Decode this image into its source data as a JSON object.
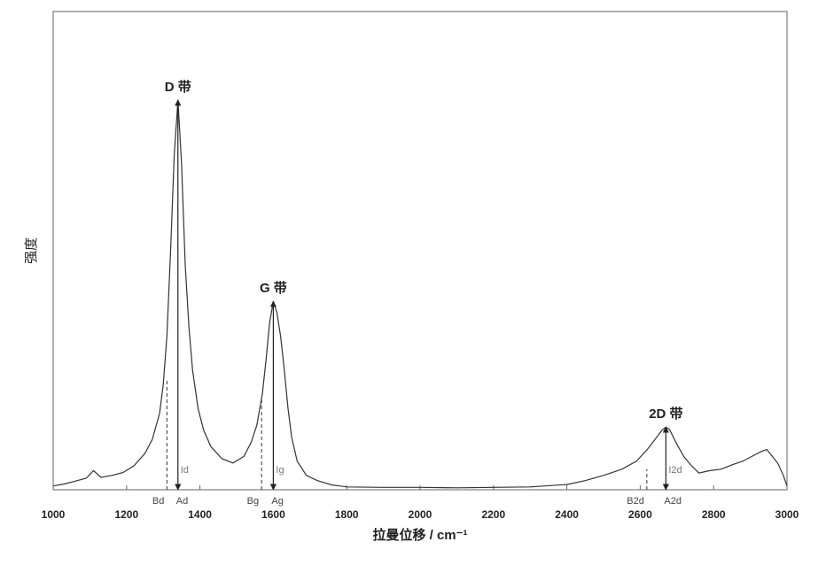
{
  "chart_data": {
    "type": "line",
    "x_label": "拉曼位移 / cm⁻¹",
    "y_label": "强度",
    "x": [
      1000,
      1030,
      1060,
      1090,
      1110,
      1130,
      1160,
      1190,
      1220,
      1250,
      1270,
      1290,
      1300,
      1310,
      1320,
      1330,
      1340,
      1350,
      1360,
      1370,
      1380,
      1395,
      1410,
      1430,
      1460,
      1490,
      1520,
      1540,
      1555,
      1570,
      1580,
      1590,
      1600,
      1610,
      1620,
      1630,
      1640,
      1650,
      1665,
      1690,
      1720,
      1760,
      1800,
      1900,
      2000,
      2100,
      2200,
      2300,
      2400,
      2450,
      2500,
      2550,
      2590,
      2620,
      2640,
      2660,
      2670,
      2680,
      2700,
      2720,
      2740,
      2760,
      2790,
      2820,
      2850,
      2880,
      2910,
      2930,
      2945,
      2960,
      2975,
      2990,
      3000
    ],
    "values": [
      0.8,
      1.2,
      1.8,
      2.4,
      4.0,
      2.6,
      3.0,
      3.6,
      5.0,
      7.6,
      10.5,
      16,
      22,
      32,
      50,
      70,
      81.5,
      68,
      47,
      34,
      25,
      17,
      12.5,
      9,
      6.5,
      5.6,
      7,
      10,
      13.5,
      20,
      27,
      35,
      39.4,
      37,
      32,
      25,
      17,
      11,
      6,
      3,
      1.9,
      1.0,
      0.6,
      0.5,
      0.5,
      0.4,
      0.5,
      0.6,
      1.1,
      1.9,
      3,
      4.3,
      6,
      8.5,
      10.5,
      12.5,
      13.1,
      12.6,
      9.5,
      6.8,
      5,
      3.5,
      4,
      4.3,
      5.2,
      6,
      7.2,
      8,
      8.4,
      7,
      5.5,
      3,
      0.8
    ],
    "color": "#333333",
    "xlim": [
      1000,
      3000
    ],
    "xticks": [
      1000,
      1200,
      1400,
      1600,
      1800,
      2000,
      2200,
      2400,
      2600,
      2800,
      3000
    ],
    "ylim": [
      0,
      100
    ],
    "peaks": [
      {
        "label": "D 带",
        "x": 1340,
        "y": 81.5,
        "base_label": "Ad",
        "height_label": "Id"
      },
      {
        "label": "G 带",
        "x": 1600,
        "y": 39.4,
        "base_label": "Ag",
        "height_label": "Ig"
      },
      {
        "label": "2D 带",
        "x": 2670,
        "y": 13.1,
        "base_label": "A2d",
        "height_label": "I2d"
      }
    ],
    "baselines": [
      {
        "label": "Bd",
        "x": 1310,
        "y": 22.8
      },
      {
        "label": "Bg",
        "x": 1568,
        "y": 19
      },
      {
        "label": "B2d",
        "x": 2618,
        "y": 4.3
      }
    ]
  }
}
